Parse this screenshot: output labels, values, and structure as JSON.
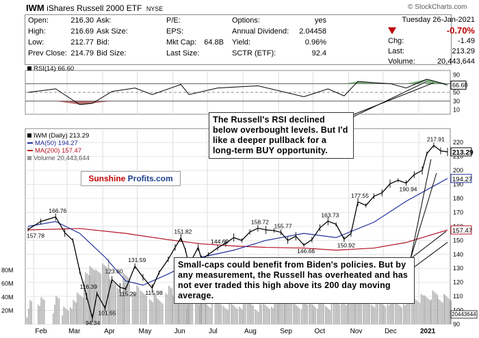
{
  "header": {
    "symbol": "IWM",
    "name": "iShares Russell 2000 ETF",
    "exchange": "NYSE",
    "brand": "© StockCharts.com"
  },
  "quote": {
    "open_label": "Open:",
    "open": "216.30",
    "high_label": "High:",
    "high": "216.69",
    "low_label": "Low:",
    "low": "212.77",
    "prev_label": "Prev Close:",
    "prev": "214.79",
    "ask_label": "Ask:",
    "ask": "",
    "asksize_label": "Ask Size:",
    "asksize": "",
    "bid_label": "Bid:",
    "bid": "",
    "bidsize_label": "Bid Size:",
    "bidsize": "",
    "pe_label": "P/E:",
    "pe": "",
    "eps_label": "EPS:",
    "eps": "",
    "mktcap_label": "Mkt Cap:",
    "mktcap": "64.8B",
    "lastsize_label": "Last Size:",
    "lastsize": "",
    "options_label": "Options:",
    "options": "yes",
    "dividend_label": "Annual Dividend:",
    "dividend": "2.04458",
    "yield_label": "Yield:",
    "yield": "0.96%",
    "sctr_label": "SCTR (ETF):",
    "sctr": "92.4",
    "date": "Tuesday  26-Jan-2021",
    "pct": "-0.70%",
    "chg_label": "Chg:",
    "chg": "-1.49",
    "last_label": "Last:",
    "last": "213.29",
    "volume_label": "Volume:",
    "volume": "20,443,644",
    "down_color": "#c00000"
  },
  "rsi_panel": {
    "title": "RSI(14) 66.60",
    "ticks": [
      "90",
      "70",
      "50",
      "30",
      "10"
    ],
    "last_label": "66.60"
  },
  "price_panel": {
    "legend_title": "IWM (Daily) 213.29",
    "legend_ma50": "MA(50) 194.27",
    "legend_ma200": "MA(200) 157.47",
    "legend_volume": "Volume 20,443,644",
    "volume_ticks": [
      "80M",
      "60M",
      "40M",
      "20M"
    ],
    "last_price_label": "213.29",
    "ma50_label": "194.27",
    "ma200_label": "157.47",
    "volume_label": "20443644"
  },
  "annotations": {
    "rsi_note": "The Russell's RSI declined below overbought levels. But I'd like a deeper pullback for a long-term BUY opportunity.",
    "ma_note": "Small-caps could benefit from Biden's policies. But by any measurement, the Russell has overheated and has not ever traded this high above its 200 day moving average."
  },
  "logo": {
    "part1": "Sunshine",
    "part2": "Profits.com"
  },
  "colors": {
    "price": "#000000",
    "ma50": "#1f2f9c",
    "ma200": "#b01020",
    "rsi_fill_high": "#5a9a5a",
    "rsi_fill_low": "#a04040",
    "volume": "#b0b0b0"
  },
  "chart_data": {
    "type": "line",
    "title": "IWM (Daily) 213.29",
    "x_tick_labels": [
      "Feb",
      "Mar",
      "Apr",
      "May",
      "Jun",
      "Jul",
      "Aug",
      "Sep",
      "Oct",
      "Nov",
      "Dec",
      "2021"
    ],
    "ylim": [
      90,
      225
    ],
    "y_ticks": [
      90,
      100,
      110,
      120,
      130,
      140,
      150,
      160,
      170,
      180,
      190,
      200,
      210,
      220
    ],
    "series": [
      {
        "name": "IWM (Daily) 213.29",
        "x": [
          "Jan 27",
          "Feb 7",
          "Feb 20",
          "Feb 28",
          "Mar 6",
          "Mar 12",
          "Mar 18",
          "Mar 23",
          "Mar 27",
          "Apr 3",
          "Apr 9",
          "Apr 16",
          "Apr 21",
          "Apr 29",
          "May 6",
          "May 14",
          "May 20",
          "May 28",
          "Jun 3",
          "Jun 8",
          "Jun 12",
          "Jun 15",
          "Jun 23",
          "Jun 26",
          "Jul 2",
          "Jul 10",
          "Jul 17",
          "Jul 24",
          "Jul 31",
          "Aug 7",
          "Aug 14",
          "Aug 21",
          "Aug 28",
          "Sep 3",
          "Sep 9",
          "Sep 16",
          "Sep 23",
          "Sep 30",
          "Oct 7",
          "Oct 14",
          "Oct 21",
          "Oct 28",
          "Nov 3",
          "Nov 9",
          "Nov 16",
          "Nov 23",
          "Nov 30",
          "Dec 7",
          "Dec 14",
          "Dec 21",
          "Dec 28",
          "Jan 4",
          "Jan 8",
          "Jan 14",
          "Jan 20",
          "Jan 26"
        ],
        "y": [
          157.8,
          163.5,
          166.76,
          155.5,
          150.0,
          128.0,
          110.0,
          94.34,
          112.0,
          101.55,
          122.0,
          116.39,
          115.29,
          131.59,
          123.6,
          115.98,
          127.0,
          136.5,
          145.0,
          151.82,
          143.0,
          132.36,
          145.0,
          136.29,
          140.0,
          144.69,
          148.0,
          152.0,
          150.0,
          156.0,
          158.72,
          157.5,
          157.0,
          155.77,
          150.0,
          153.0,
          146.66,
          150.5,
          159.0,
          163.73,
          161.5,
          150.92,
          155.0,
          177.55,
          175.0,
          181.5,
          184.0,
          190.5,
          193.0,
          190.94,
          197.0,
          200.0,
          212.0,
          217.91,
          214.0,
          213.29
        ]
      },
      {
        "name": "MA(50) 194.27",
        "x": [
          "Jan 27",
          "Feb 20",
          "Mar 12",
          "Apr 3",
          "Apr 21",
          "May 6",
          "May 28",
          "Jun 26",
          "Jul 24",
          "Aug 21",
          "Sep 23",
          "Oct 21",
          "Nov 23",
          "Dec 21",
          "Jan 26"
        ],
        "y": [
          160,
          163.5,
          155,
          138,
          121,
          118,
          126,
          138,
          143,
          150,
          155,
          152,
          163,
          178,
          194.27
        ]
      },
      {
        "name": "MA(200) 157.47",
        "x": [
          "Jan 27",
          "Mar 12",
          "Apr 21",
          "May 28",
          "Jun 26",
          "Jul 24",
          "Aug 21",
          "Sep 23",
          "Oct 21",
          "Nov 23",
          "Dec 21",
          "Jan 26"
        ],
        "y": [
          157.5,
          158.5,
          155,
          150.5,
          147.5,
          146,
          145,
          144.5,
          143,
          144.5,
          148.5,
          157.47
        ]
      },
      {
        "name": "RSI(14) 66.60",
        "ylim": [
          0,
          100
        ],
        "x": [
          "Jan 27",
          "Feb 20",
          "Mar 12",
          "Mar 23",
          "Apr 9",
          "Apr 29",
          "May 14",
          "Jun 8",
          "Jun 15",
          "Jul 10",
          "Aug 14",
          "Sep 23",
          "Oct 14",
          "Oct 28",
          "Nov 9",
          "Nov 23",
          "Dec 7",
          "Dec 21",
          "Jan 8",
          "Jan 14",
          "Jan 26"
        ],
        "y": [
          50,
          58,
          22,
          25,
          52,
          60,
          45,
          68,
          45,
          60,
          65,
          40,
          58,
          42,
          75,
          72,
          70,
          60,
          80,
          76,
          66.6
        ]
      }
    ],
    "labeled_points": [
      {
        "label": "166.76",
        "value": 166.76
      },
      {
        "label": "157.78",
        "value": 157.78
      },
      {
        "label": "116.39",
        "value": 116.39
      },
      {
        "label": "94.34",
        "value": 94.34
      },
      {
        "label": "101.55",
        "value": 101.55
      },
      {
        "label": "123.60",
        "value": 123.6
      },
      {
        "label": "115.29",
        "value": 115.29
      },
      {
        "label": "131.59",
        "value": 131.59
      },
      {
        "label": "115.98",
        "value": 115.98
      },
      {
        "label": "151.82",
        "value": 151.82
      },
      {
        "label": "132.36",
        "value": 132.36
      },
      {
        "label": "144.69",
        "value": 144.69
      },
      {
        "label": "136.29",
        "value": 136.29
      },
      {
        "label": "158.72",
        "value": 158.72
      },
      {
        "label": "155.77",
        "value": 155.77
      },
      {
        "label": "146.66",
        "value": 146.66
      },
      {
        "label": "163.73",
        "value": 163.73
      },
      {
        "label": "150.92",
        "value": 150.92
      },
      {
        "label": "177.55",
        "value": 177.55
      },
      {
        "label": "190.94",
        "value": 190.94
      },
      {
        "label": "217.91",
        "value": 217.91
      }
    ]
  }
}
